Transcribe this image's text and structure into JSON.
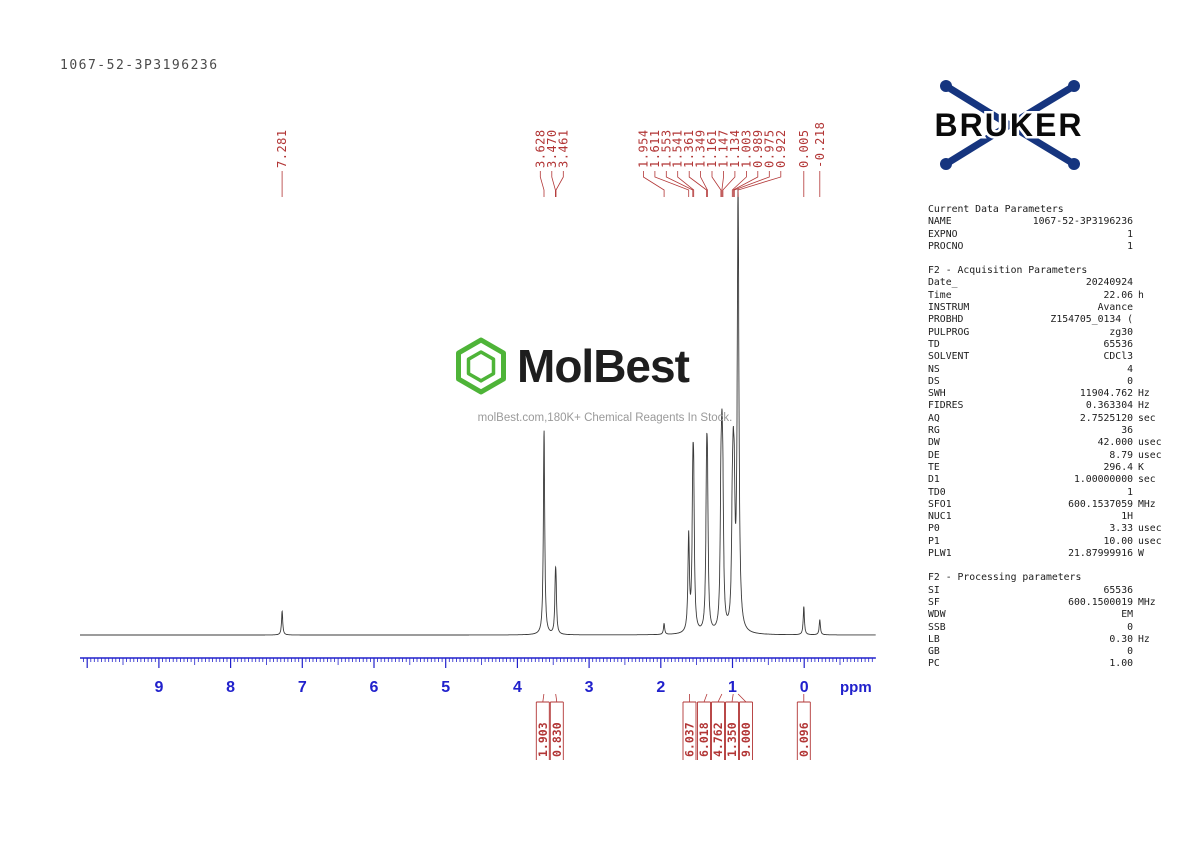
{
  "title": "1067-52-3P3196236",
  "colors": {
    "peak_red": "#b23636",
    "axis_blue": "#2121cc",
    "trace_gray": "#3a3a3a",
    "bruker_blue": "#16357f",
    "molbest_green": "#45b12e"
  },
  "bruker": {
    "label": "BRUKER"
  },
  "watermark": {
    "brand": "MolBest",
    "tagline": "molBest.com,180K+ Chemical Reagents In Stock."
  },
  "chart_data": {
    "type": "line",
    "title": "1H NMR spectrum 1067-52-3P3196236",
    "xlabel": "ppm",
    "x_range": [
      10.1,
      -1.0
    ],
    "x_ticks": [
      9,
      8,
      7,
      6,
      5,
      4,
      3,
      2,
      1,
      0
    ],
    "grid": false,
    "peak_labels": [
      "7.281",
      "3.628",
      "3.470",
      "3.461",
      "1.954",
      "1.611",
      "1.553",
      "1.541",
      "1.361",
      "1.349",
      "1.161",
      "1.147",
      "1.134",
      "1.003",
      "0.989",
      "0.975",
      "0.922",
      "0.005",
      "-0.218"
    ],
    "peaks": [
      {
        "ppm": 7.281,
        "h": 0.055,
        "w": 0.01
      },
      {
        "ppm": 3.628,
        "h": 0.47,
        "w": 0.011
      },
      {
        "ppm": 3.47,
        "h": 0.1,
        "w": 0.01
      },
      {
        "ppm": 3.461,
        "h": 0.085,
        "w": 0.01
      },
      {
        "ppm": 1.954,
        "h": 0.025,
        "w": 0.01
      },
      {
        "ppm": 1.611,
        "h": 0.22,
        "w": 0.012
      },
      {
        "ppm": 1.553,
        "h": 0.28,
        "w": 0.012
      },
      {
        "ppm": 1.541,
        "h": 0.26,
        "w": 0.012
      },
      {
        "ppm": 1.361,
        "h": 0.3,
        "w": 0.012
      },
      {
        "ppm": 1.349,
        "h": 0.27,
        "w": 0.012
      },
      {
        "ppm": 1.161,
        "h": 0.26,
        "w": 0.012
      },
      {
        "ppm": 1.147,
        "h": 0.29,
        "w": 0.012
      },
      {
        "ppm": 1.134,
        "h": 0.24,
        "w": 0.012
      },
      {
        "ppm": 1.003,
        "h": 0.2,
        "w": 0.012
      },
      {
        "ppm": 0.989,
        "h": 0.25,
        "w": 0.012
      },
      {
        "ppm": 0.975,
        "h": 0.23,
        "w": 0.012
      },
      {
        "ppm": 0.922,
        "h": 1.0,
        "w": 0.014
      },
      {
        "ppm": 0.005,
        "h": 0.065,
        "w": 0.01
      },
      {
        "ppm": -0.218,
        "h": 0.035,
        "w": 0.01
      }
    ],
    "integrals": [
      {
        "value": "1.903",
        "ppm": 3.63
      },
      {
        "value": "0.830",
        "ppm": 3.465
      },
      {
        "value": "6.037",
        "ppm": 1.6
      },
      {
        "value": "6.018",
        "ppm": 1.355
      },
      {
        "value": "4.762",
        "ppm": 1.147
      },
      {
        "value": "1.350",
        "ppm": 0.99
      },
      {
        "value": "9.000",
        "ppm": 0.922
      },
      {
        "value": "0.096",
        "ppm": 0.005
      }
    ]
  },
  "parameters": {
    "sections": [
      {
        "title": "Current Data Parameters",
        "rows": [
          [
            "NAME",
            "1067-52-3P3196236",
            ""
          ],
          [
            "EXPNO",
            "1",
            ""
          ],
          [
            "PROCNO",
            "1",
            ""
          ]
        ]
      },
      {
        "title": "F2 - Acquisition Parameters",
        "rows": [
          [
            "Date_",
            "20240924",
            ""
          ],
          [
            "Time",
            "22.06",
            "h"
          ],
          [
            "INSTRUM",
            "Avance",
            ""
          ],
          [
            "PROBHD",
            "Z154705_0134 (",
            ""
          ],
          [
            "PULPROG",
            "zg30",
            ""
          ],
          [
            "TD",
            "65536",
            ""
          ],
          [
            "SOLVENT",
            "CDCl3",
            ""
          ],
          [
            "NS",
            "4",
            ""
          ],
          [
            "DS",
            "0",
            ""
          ],
          [
            "SWH",
            "11904.762",
            "Hz"
          ],
          [
            "FIDRES",
            "0.363304",
            "Hz"
          ],
          [
            "AQ",
            "2.7525120",
            "sec"
          ],
          [
            "RG",
            "36",
            ""
          ],
          [
            "DW",
            "42.000",
            "usec"
          ],
          [
            "DE",
            "8.79",
            "usec"
          ],
          [
            "TE",
            "296.4",
            "K"
          ],
          [
            "D1",
            "1.00000000",
            "sec"
          ],
          [
            "TD0",
            "1",
            ""
          ],
          [
            "SFO1",
            "600.1537059",
            "MHz"
          ],
          [
            "NUC1",
            "1H",
            ""
          ],
          [
            "P0",
            "3.33",
            "usec"
          ],
          [
            "P1",
            "10.00",
            "usec"
          ],
          [
            "PLW1",
            "21.87999916",
            "W"
          ]
        ]
      },
      {
        "title": "F2 - Processing parameters",
        "rows": [
          [
            "SI",
            "65536",
            ""
          ],
          [
            "SF",
            "600.1500019",
            "MHz"
          ],
          [
            "WDW",
            "EM",
            ""
          ],
          [
            "SSB",
            "0",
            ""
          ],
          [
            "LB",
            "0.30",
            "Hz"
          ],
          [
            "GB",
            "0",
            ""
          ],
          [
            "PC",
            "1.00",
            ""
          ]
        ]
      }
    ]
  }
}
